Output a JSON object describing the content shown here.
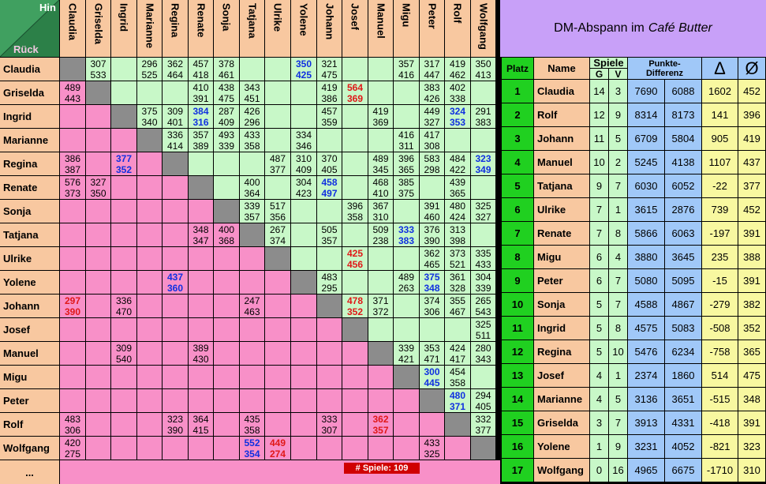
{
  "corner": {
    "hin": "Hin",
    "rueck": "Rück"
  },
  "players": [
    "Claudia",
    "Griselda",
    "Ingrid",
    "Marianne",
    "Regina",
    "Renate",
    "Sonja",
    "Tatjana",
    "Ulrike",
    "Yolene",
    "Johann",
    "Josef",
    "Manuel",
    "Migu",
    "Peter",
    "Rolf",
    "Wolfgang"
  ],
  "more_label": "...",
  "game_count": "# Spiele:   109",
  "matrix": [
    [
      null,
      [
        "307",
        "533"
      ],
      null,
      [
        "296",
        "525"
      ],
      [
        "362",
        "464"
      ],
      [
        "457",
        "418"
      ],
      [
        "378",
        "461"
      ],
      null,
      null,
      [
        "350",
        "425",
        "blue"
      ],
      [
        "321",
        "475"
      ],
      null,
      null,
      [
        "357",
        "416"
      ],
      [
        "317",
        "447"
      ],
      [
        "419",
        "462"
      ],
      [
        "350",
        "413"
      ]
    ],
    [
      [
        "489",
        "443"
      ],
      null,
      null,
      null,
      null,
      [
        "410",
        "391"
      ],
      [
        "438",
        "475"
      ],
      [
        "343",
        "451"
      ],
      null,
      null,
      [
        "419",
        "386"
      ],
      [
        "564",
        "369",
        "red"
      ],
      null,
      null,
      [
        "383",
        "426"
      ],
      [
        "402",
        "338"
      ],
      null
    ],
    [
      null,
      null,
      null,
      [
        "375",
        "340"
      ],
      [
        "309",
        "401"
      ],
      [
        "384",
        "316",
        "blue"
      ],
      [
        "287",
        "409"
      ],
      [
        "426",
        "296"
      ],
      null,
      null,
      [
        "457",
        "359"
      ],
      null,
      [
        "419",
        "369"
      ],
      null,
      [
        "449",
        "327"
      ],
      [
        "324",
        "353",
        "blue"
      ],
      [
        "291",
        "383"
      ]
    ],
    [
      null,
      null,
      null,
      null,
      [
        "336",
        "414"
      ],
      [
        "357",
        "389"
      ],
      [
        "493",
        "339"
      ],
      [
        "433",
        "358"
      ],
      null,
      [
        "334",
        "346"
      ],
      null,
      null,
      null,
      [
        "416",
        "311"
      ],
      [
        "417",
        "308"
      ],
      null,
      null
    ],
    [
      [
        "386",
        "387"
      ],
      null,
      [
        "377",
        "352",
        "blue"
      ],
      null,
      null,
      null,
      null,
      null,
      [
        "487",
        "377"
      ],
      [
        "310",
        "409"
      ],
      [
        "370",
        "405"
      ],
      null,
      [
        "489",
        "345"
      ],
      [
        "396",
        "365"
      ],
      [
        "583",
        "298"
      ],
      [
        "484",
        "422"
      ],
      [
        "323",
        "349",
        "blue"
      ]
    ],
    [
      [
        "576",
        "373"
      ],
      [
        "327",
        "350"
      ],
      null,
      null,
      null,
      null,
      null,
      [
        "400",
        "364"
      ],
      null,
      [
        "304",
        "423"
      ],
      [
        "458",
        "497",
        "blue"
      ],
      null,
      [
        "468",
        "410"
      ],
      [
        "385",
        "375"
      ],
      null,
      [
        "439",
        "365"
      ],
      null
    ],
    [
      null,
      null,
      null,
      null,
      null,
      null,
      null,
      [
        "339",
        "357"
      ],
      [
        "517",
        "356"
      ],
      null,
      null,
      [
        "396",
        "358"
      ],
      [
        "367",
        "310"
      ],
      null,
      [
        "391",
        "460"
      ],
      [
        "480",
        "424"
      ],
      [
        "325",
        "327"
      ]
    ],
    [
      null,
      null,
      null,
      null,
      null,
      [
        "348",
        "347"
      ],
      [
        "400",
        "368"
      ],
      null,
      [
        "267",
        "374"
      ],
      null,
      [
        "505",
        "357"
      ],
      null,
      [
        "509",
        "238"
      ],
      [
        "333",
        "383",
        "blue"
      ],
      [
        "376",
        "390"
      ],
      [
        "313",
        "398"
      ],
      null
    ],
    [
      null,
      null,
      null,
      null,
      null,
      null,
      null,
      null,
      null,
      null,
      null,
      [
        "425",
        "456",
        "red"
      ],
      null,
      null,
      [
        "362",
        "465"
      ],
      [
        "373",
        "521"
      ],
      [
        "335",
        "433"
      ]
    ],
    [
      null,
      null,
      null,
      null,
      [
        "437",
        "360",
        "blue"
      ],
      null,
      null,
      null,
      null,
      null,
      [
        "483",
        "295"
      ],
      null,
      null,
      [
        "489",
        "263"
      ],
      [
        "375",
        "348",
        "blue"
      ],
      [
        "361",
        "328"
      ],
      [
        "304",
        "339"
      ]
    ],
    [
      [
        "297",
        "390",
        "red"
      ],
      null,
      [
        "336",
        "470"
      ],
      null,
      null,
      null,
      null,
      [
        "247",
        "463"
      ],
      null,
      null,
      null,
      [
        "478",
        "352",
        "red"
      ],
      [
        "371",
        "372"
      ],
      null,
      [
        "374",
        "306"
      ],
      [
        "355",
        "467"
      ],
      [
        "265",
        "543"
      ]
    ],
    [
      null,
      null,
      null,
      null,
      null,
      null,
      null,
      null,
      null,
      null,
      null,
      null,
      null,
      null,
      null,
      null,
      [
        "325",
        "511"
      ]
    ],
    [
      null,
      null,
      [
        "309",
        "540"
      ],
      null,
      null,
      [
        "389",
        "430"
      ],
      null,
      null,
      null,
      null,
      null,
      null,
      null,
      [
        "339",
        "421"
      ],
      [
        "353",
        "471"
      ],
      [
        "424",
        "417"
      ],
      [
        "280",
        "343"
      ]
    ],
    [
      null,
      null,
      null,
      null,
      null,
      null,
      null,
      null,
      null,
      null,
      null,
      null,
      null,
      null,
      [
        "300",
        "445",
        "blue"
      ],
      [
        "454",
        "358"
      ],
      null
    ],
    [
      null,
      null,
      null,
      null,
      null,
      null,
      null,
      null,
      null,
      null,
      null,
      null,
      null,
      null,
      null,
      [
        "480",
        "371",
        "blue"
      ],
      [
        "294",
        "405"
      ]
    ],
    [
      [
        "483",
        "306"
      ],
      null,
      null,
      null,
      [
        "323",
        "390"
      ],
      [
        "364",
        "415"
      ],
      null,
      [
        "435",
        "358"
      ],
      null,
      null,
      [
        "333",
        "307"
      ],
      null,
      [
        "362",
        "357",
        "red"
      ],
      null,
      null,
      null,
      [
        "332",
        "377"
      ]
    ],
    [
      [
        "420",
        "275"
      ],
      null,
      null,
      null,
      null,
      null,
      null,
      [
        "552",
        "354",
        "blue"
      ],
      [
        "449",
        "274",
        "red"
      ],
      null,
      null,
      null,
      null,
      null,
      [
        "433",
        "325"
      ],
      null,
      null
    ]
  ],
  "standings": {
    "title_prefix": "DM-Abspann im",
    "title_venue": "Café Butter",
    "headers": {
      "platz": "Platz",
      "name": "Name",
      "spiele": "Spiele",
      "g": "G",
      "v": "V",
      "punkte": "Punkte-Differenz",
      "delta": "Δ",
      "avg": "Ø"
    },
    "rows": [
      {
        "platz": "1",
        "name": "Claudia",
        "g": "14",
        "v": "3",
        "p1": "7690",
        "p2": "6088",
        "delta": "1602",
        "avg": "452"
      },
      {
        "platz": "2",
        "name": "Rolf",
        "g": "12",
        "v": "9",
        "p1": "8314",
        "p2": "8173",
        "delta": "141",
        "avg": "396"
      },
      {
        "platz": "3",
        "name": "Johann",
        "g": "11",
        "v": "5",
        "p1": "6709",
        "p2": "5804",
        "delta": "905",
        "avg": "419"
      },
      {
        "platz": "4",
        "name": "Manuel",
        "g": "10",
        "v": "2",
        "p1": "5245",
        "p2": "4138",
        "delta": "1107",
        "avg": "437"
      },
      {
        "platz": "5",
        "name": "Tatjana",
        "g": "9",
        "v": "7",
        "p1": "6030",
        "p2": "6052",
        "delta": "-22",
        "avg": "377"
      },
      {
        "platz": "6",
        "name": "Ulrike",
        "g": "7",
        "v": "1",
        "p1": "3615",
        "p2": "2876",
        "delta": "739",
        "avg": "452"
      },
      {
        "platz": "7",
        "name": "Renate",
        "g": "7",
        "v": "8",
        "p1": "5866",
        "p2": "6063",
        "delta": "-197",
        "avg": "391"
      },
      {
        "platz": "8",
        "name": "Migu",
        "g": "6",
        "v": "4",
        "p1": "3880",
        "p2": "3645",
        "delta": "235",
        "avg": "388"
      },
      {
        "platz": "9",
        "name": "Peter",
        "g": "6",
        "v": "7",
        "p1": "5080",
        "p2": "5095",
        "delta": "-15",
        "avg": "391"
      },
      {
        "platz": "10",
        "name": "Sonja",
        "g": "5",
        "v": "7",
        "p1": "4588",
        "p2": "4867",
        "delta": "-279",
        "avg": "382"
      },
      {
        "platz": "11",
        "name": "Ingrid",
        "g": "5",
        "v": "8",
        "p1": "4575",
        "p2": "5083",
        "delta": "-508",
        "avg": "352"
      },
      {
        "platz": "12",
        "name": "Regina",
        "g": "5",
        "v": "10",
        "p1": "5476",
        "p2": "6234",
        "delta": "-758",
        "avg": "365"
      },
      {
        "platz": "13",
        "name": "Josef",
        "g": "4",
        "v": "1",
        "p1": "2374",
        "p2": "1860",
        "delta": "514",
        "avg": "475"
      },
      {
        "platz": "14",
        "name": "Marianne",
        "g": "4",
        "v": "5",
        "p1": "3136",
        "p2": "3651",
        "delta": "-515",
        "avg": "348"
      },
      {
        "platz": "15",
        "name": "Griselda",
        "g": "3",
        "v": "7",
        "p1": "3913",
        "p2": "4331",
        "delta": "-418",
        "avg": "391"
      },
      {
        "platz": "16",
        "name": "Yolene",
        "g": "1",
        "v": "9",
        "p1": "3231",
        "p2": "4052",
        "delta": "-821",
        "avg": "323"
      },
      {
        "platz": "17",
        "name": "Wolfgang",
        "g": "0",
        "v": "16",
        "p1": "4965",
        "p2": "6675",
        "delta": "-1710",
        "avg": "310"
      }
    ]
  }
}
